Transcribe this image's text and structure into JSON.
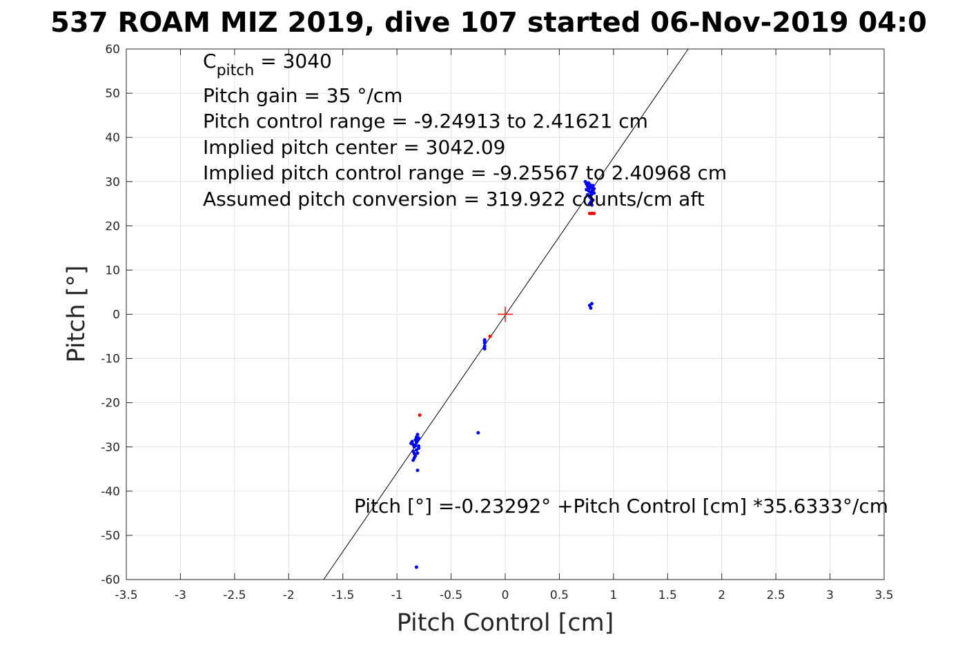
{
  "chart_data": {
    "type": "scatter",
    "title": "537 ROAM MIZ 2019, dive 107 started 06-Nov-2019 04:0",
    "xlabel": "Pitch Control [cm]",
    "ylabel": "Pitch [°]",
    "xlim": [
      -3.5,
      3.5
    ],
    "ylim": [
      -60,
      60
    ],
    "xticks": [
      "-3.5",
      "-3",
      "-2.5",
      "-2",
      "-1.5",
      "-1",
      "-0.5",
      "0",
      "0.5",
      "1",
      "1.5",
      "2",
      "2.5",
      "3",
      "3.5"
    ],
    "yticks": [
      "60",
      "50",
      "40",
      "30",
      "20",
      "10",
      "0",
      "-10",
      "-20",
      "-30",
      "-40",
      "-50",
      "-60"
    ],
    "grid": true,
    "annotations": {
      "cpitch_symbol": "C",
      "cpitch_subscript": "pitch",
      "cpitch_value": " = 3040",
      "lines": [
        "Pitch gain = 35 °/cm",
        "Pitch control range = -9.24913 to 2.41621 cm",
        "Implied pitch center = 3042.09",
        "Implied pitch control range = -9.25567 to 2.40968 cm",
        "Assumed pitch conversion = 319.922 counts/cm aft"
      ],
      "fit": "Pitch [°] =-0.23292° +Pitch Control [cm] *35.6333°/cm"
    },
    "fit_line": {
      "intercept": -0.23292,
      "slope": 35.6333,
      "color": "#000000"
    },
    "center_marker": {
      "x": 0,
      "y": 0,
      "color": "#ff0000"
    },
    "series": [
      {
        "color": "#0000ff",
        "points": [
          [
            0.74,
            30
          ],
          [
            0.75,
            29.5
          ],
          [
            0.76,
            29
          ],
          [
            0.77,
            28.8
          ],
          [
            0.78,
            28.5
          ],
          [
            0.79,
            29.2
          ],
          [
            0.8,
            28.7
          ],
          [
            0.81,
            29.1
          ],
          [
            0.82,
            28.4
          ],
          [
            0.75,
            28.2
          ],
          [
            0.77,
            27.9
          ],
          [
            0.79,
            27.6
          ],
          [
            0.8,
            27.2
          ],
          [
            0.76,
            27.0
          ],
          [
            0.78,
            26.6
          ],
          [
            0.79,
            26.3
          ],
          [
            0.8,
            26.0
          ],
          [
            0.81,
            25.8
          ],
          [
            0.79,
            25.4
          ],
          [
            0.78,
            25.0
          ],
          [
            0.8,
            24.7
          ],
          [
            0.82,
            27.4
          ],
          [
            0.77,
            29.7
          ],
          [
            0.79,
            26.9
          ],
          [
            0.81,
            28.0
          ],
          [
            0.78,
            2.0
          ],
          [
            0.79,
            1.4
          ],
          [
            0.8,
            2.4
          ],
          [
            -0.19,
            -5.8
          ],
          [
            -0.19,
            -6.5
          ],
          [
            -0.19,
            -7.2
          ],
          [
            -0.19,
            -7.8
          ],
          [
            -0.19,
            -6.1
          ],
          [
            -0.87,
            -29.2
          ],
          [
            -0.86,
            -28.8
          ],
          [
            -0.85,
            -29.5
          ],
          [
            -0.84,
            -30.0
          ],
          [
            -0.83,
            -28.4
          ],
          [
            -0.82,
            -27.8
          ],
          [
            -0.81,
            -27.2
          ],
          [
            -0.8,
            -28.0
          ],
          [
            -0.85,
            -31.0
          ],
          [
            -0.84,
            -31.5
          ],
          [
            -0.83,
            -32.0
          ],
          [
            -0.82,
            -30.7
          ],
          [
            -0.81,
            -31.4
          ],
          [
            -0.8,
            -30.3
          ],
          [
            -0.84,
            -32.5
          ],
          [
            -0.85,
            -33.0
          ],
          [
            -0.83,
            -29.7
          ],
          [
            -0.82,
            -29.0
          ],
          [
            -0.81,
            -28.5
          ],
          [
            -0.8,
            -29.8
          ],
          [
            -0.81,
            -35.3
          ],
          [
            -0.25,
            -26.8
          ],
          [
            -0.82,
            -57.2
          ]
        ]
      },
      {
        "color": "#ff0000",
        "points": [
          [
            0.78,
            22.8
          ],
          [
            0.8,
            22.8
          ],
          [
            0.82,
            22.8
          ],
          [
            -0.79,
            -22.8
          ],
          [
            -0.14,
            -5.0
          ]
        ]
      }
    ]
  }
}
